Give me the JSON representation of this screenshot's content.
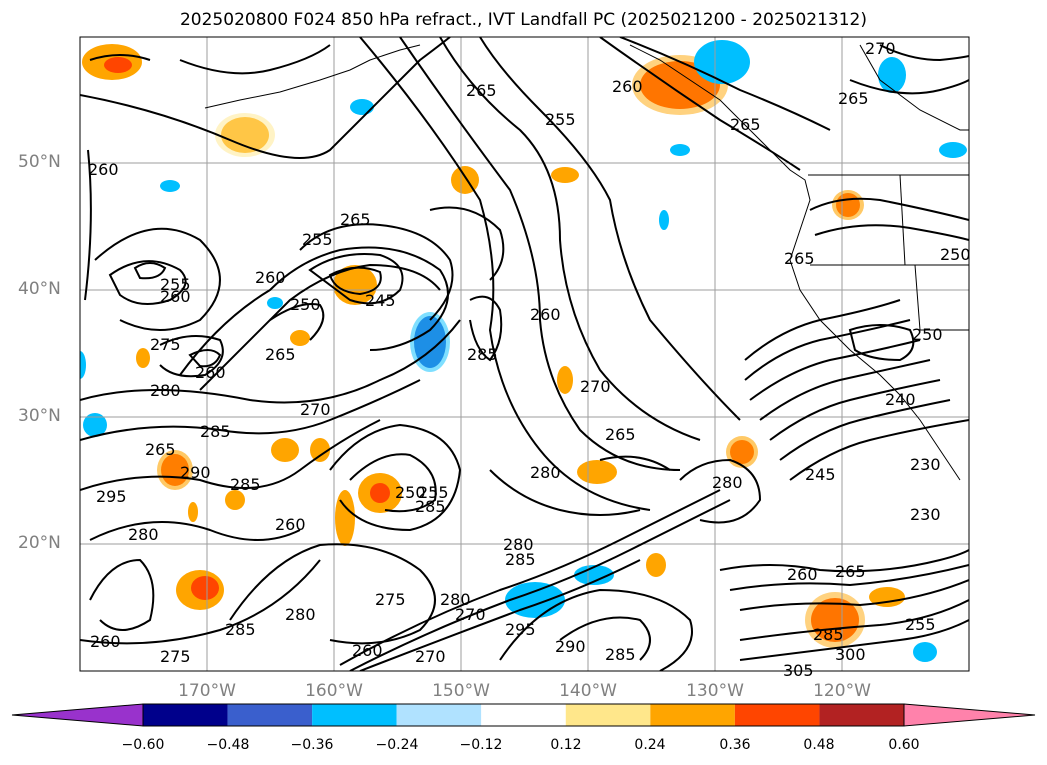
{
  "title": "2025020800 F024 850 hPa refract., IVT Landfall PC (2025021200 - 2025021312)",
  "lat_labels": [
    "50°N",
    "40°N",
    "30°N",
    "20°N"
  ],
  "lon_labels": [
    "170°W",
    "160°W",
    "150°W",
    "140°W",
    "130°W",
    "120°W"
  ],
  "contour_labels": [
    "270",
    "265",
    "260",
    "265",
    "255",
    "265",
    "260",
    "255",
    "265",
    "250",
    "245",
    "260",
    "265",
    "255",
    "260",
    "275",
    "260",
    "265",
    "270",
    "285",
    "280",
    "280",
    "260",
    "270",
    "285",
    "265",
    "290",
    "295",
    "285",
    "280",
    "260",
    "280",
    "285",
    "250",
    "255",
    "245",
    "280",
    "285",
    "260",
    "265",
    "275",
    "280",
    "270",
    "285",
    "295",
    "280",
    "260",
    "275",
    "290",
    "285",
    "255",
    "260",
    "270",
    "285",
    "305",
    "300",
    "230",
    "230",
    "250",
    "250",
    "265",
    "240"
  ],
  "colorbar": {
    "ticks": [
      "−0.60",
      "−0.48",
      "−0.36",
      "−0.24",
      "−0.12",
      "0.12",
      "0.24",
      "0.36",
      "0.48",
      "0.60"
    ],
    "colors": [
      "#9932cc",
      "#00008b",
      "#3a5fcd",
      "#00bfff",
      "#b0e2ff",
      "#ffffff",
      "#ffe78b",
      "#ffa500",
      "#ff4500",
      "#b22222",
      "#ff82ab"
    ]
  },
  "colors": {
    "land_line": "#000000",
    "grid": "#9e9e9e",
    "label_gray": "#808080"
  }
}
